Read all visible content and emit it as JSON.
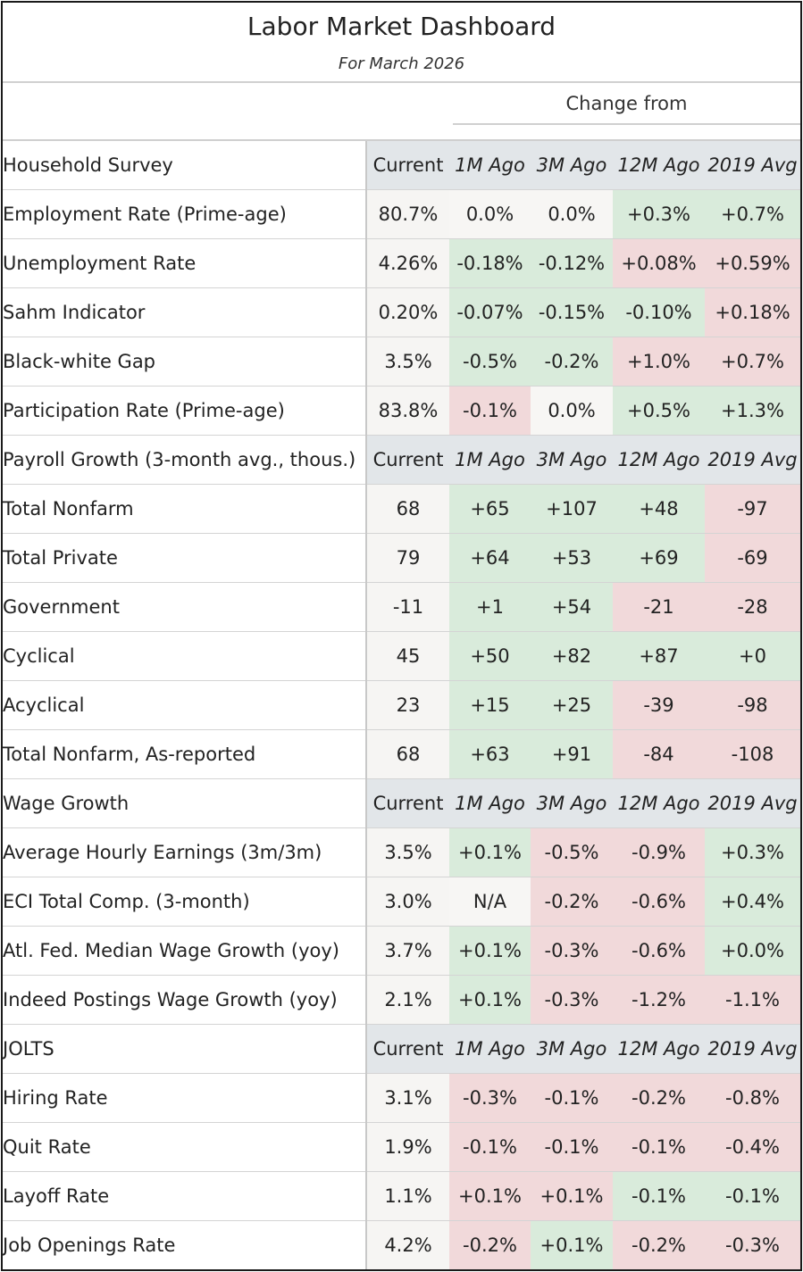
{
  "title": "Labor Market Dashboard",
  "subtitle": "For March 2026",
  "change_from_label": "Change from",
  "colors": {
    "positive": "#d9ebdb",
    "negative": "#f1d9da",
    "neutral": "#f7f6f4",
    "header": "#e2e6e9"
  },
  "rows": [
    {
      "type": "section",
      "label": "Household Survey",
      "current": "Current",
      "m1": "1M Ago",
      "m3": "3M Ago",
      "m12": "12M Ago",
      "y2019": "2019 Avg"
    },
    {
      "type": "row",
      "indent": 1,
      "label": "Employment Rate (Prime-age)",
      "current": "80.7%",
      "m1": "0.0%",
      "m3": "0.0%",
      "m12": "+0.3%",
      "y2019": "+0.7%",
      "signs": [
        "neu",
        "neu",
        "pos",
        "pos"
      ]
    },
    {
      "type": "row",
      "indent": 1,
      "label": "Unemployment Rate",
      "current": "4.26%",
      "m1": "-0.18%",
      "m3": "-0.12%",
      "m12": "+0.08%",
      "y2019": "+0.59%",
      "signs": [
        "pos",
        "pos",
        "neg",
        "neg"
      ]
    },
    {
      "type": "row",
      "indent": 2,
      "label": "Sahm Indicator",
      "current": "0.20%",
      "m1": "-0.07%",
      "m3": "-0.15%",
      "m12": "-0.10%",
      "y2019": "+0.18%",
      "signs": [
        "pos",
        "pos",
        "pos",
        "neg"
      ]
    },
    {
      "type": "row",
      "indent": 2,
      "label": "Black-white Gap",
      "current": "3.5%",
      "m1": "-0.5%",
      "m3": "-0.2%",
      "m12": "+1.0%",
      "y2019": "+0.7%",
      "signs": [
        "pos",
        "pos",
        "neg",
        "neg"
      ]
    },
    {
      "type": "row",
      "indent": 1,
      "label": "Participation Rate (Prime-age)",
      "current": "83.8%",
      "m1": "-0.1%",
      "m3": "0.0%",
      "m12": "+0.5%",
      "y2019": "+1.3%",
      "signs": [
        "neg",
        "neu",
        "pos",
        "pos"
      ]
    },
    {
      "type": "section",
      "label": "Payroll Growth (3-month avg., thous.)",
      "current": "Current",
      "m1": "1M Ago",
      "m3": "3M Ago",
      "m12": "12M Ago",
      "y2019": "2019 Avg"
    },
    {
      "type": "row",
      "indent": 1,
      "label": "Total Nonfarm",
      "current": "68",
      "m1": "+65",
      "m3": "+107",
      "m12": "+48",
      "y2019": "-97",
      "signs": [
        "pos",
        "pos",
        "pos",
        "neg"
      ]
    },
    {
      "type": "row",
      "indent": 2,
      "label": "Total Private",
      "current": "79",
      "m1": "+64",
      "m3": "+53",
      "m12": "+69",
      "y2019": "-69",
      "signs": [
        "pos",
        "pos",
        "pos",
        "neg"
      ]
    },
    {
      "type": "row",
      "indent": 2,
      "label": "Government",
      "current": "-11",
      "m1": "+1",
      "m3": "+54",
      "m12": "-21",
      "y2019": "-28",
      "signs": [
        "pos",
        "pos",
        "neg",
        "neg"
      ]
    },
    {
      "type": "row",
      "indent": 2,
      "label": "Cyclical",
      "current": "45",
      "m1": "+50",
      "m3": "+82",
      "m12": "+87",
      "y2019": "+0",
      "signs": [
        "pos",
        "pos",
        "pos",
        "pos"
      ]
    },
    {
      "type": "row",
      "indent": 2,
      "label": "Acyclical",
      "current": "23",
      "m1": "+15",
      "m3": "+25",
      "m12": "-39",
      "y2019": "-98",
      "signs": [
        "pos",
        "pos",
        "neg",
        "neg"
      ]
    },
    {
      "type": "row",
      "indent": 1,
      "label": "Total Nonfarm, As-reported",
      "current": "68",
      "m1": "+63",
      "m3": "+91",
      "m12": "-84",
      "y2019": "-108",
      "signs": [
        "pos",
        "pos",
        "neg",
        "neg"
      ]
    },
    {
      "type": "section",
      "label": "Wage Growth",
      "current": "Current",
      "m1": "1M Ago",
      "m3": "3M Ago",
      "m12": "12M Ago",
      "y2019": "2019 Avg"
    },
    {
      "type": "row",
      "indent": 1,
      "label": "Average Hourly Earnings (3m/3m)",
      "current": "3.5%",
      "m1": "+0.1%",
      "m3": "-0.5%",
      "m12": "-0.9%",
      "y2019": "+0.3%",
      "signs": [
        "pos",
        "neg",
        "neg",
        "pos"
      ]
    },
    {
      "type": "row",
      "indent": 1,
      "label": "ECI Total Comp. (3-month)",
      "current": "3.0%",
      "m1": "N/A",
      "m3": "-0.2%",
      "m12": "-0.6%",
      "y2019": "+0.4%",
      "signs": [
        "neu",
        "neg",
        "neg",
        "pos"
      ]
    },
    {
      "type": "row",
      "indent": 1,
      "label": "Atl. Fed. Median Wage Growth (yoy)",
      "current": "3.7%",
      "m1": "+0.1%",
      "m3": "-0.3%",
      "m12": "-0.6%",
      "y2019": "+0.0%",
      "signs": [
        "pos",
        "neg",
        "neg",
        "pos"
      ]
    },
    {
      "type": "row",
      "indent": 1,
      "label": "Indeed Postings Wage Growth (yoy)",
      "current": "2.1%",
      "m1": "+0.1%",
      "m3": "-0.3%",
      "m12": "-1.2%",
      "y2019": "-1.1%",
      "signs": [
        "pos",
        "neg",
        "neg",
        "neg"
      ]
    },
    {
      "type": "section",
      "label": "JOLTS",
      "current": "Current",
      "m1": "1M Ago",
      "m3": "3M Ago",
      "m12": "12M Ago",
      "y2019": "2019 Avg"
    },
    {
      "type": "row",
      "indent": 1,
      "label": "Hiring Rate",
      "current": "3.1%",
      "m1": "-0.3%",
      "m3": "-0.1%",
      "m12": "-0.2%",
      "y2019": "-0.8%",
      "signs": [
        "neg",
        "neg",
        "neg",
        "neg"
      ]
    },
    {
      "type": "row",
      "indent": 1,
      "label": "Quit Rate",
      "current": "1.9%",
      "m1": "-0.1%",
      "m3": "-0.1%",
      "m12": "-0.1%",
      "y2019": "-0.4%",
      "signs": [
        "neg",
        "neg",
        "neg",
        "neg"
      ]
    },
    {
      "type": "row",
      "indent": 1,
      "label": "Layoff Rate",
      "current": "1.1%",
      "m1": "+0.1%",
      "m3": "+0.1%",
      "m12": "-0.1%",
      "y2019": "-0.1%",
      "signs": [
        "neg",
        "neg",
        "pos",
        "pos"
      ]
    },
    {
      "type": "row",
      "indent": 1,
      "label": "Job Openings Rate",
      "current": "4.2%",
      "m1": "-0.2%",
      "m3": "+0.1%",
      "m12": "-0.2%",
      "y2019": "-0.3%",
      "signs": [
        "neg",
        "pos",
        "neg",
        "neg"
      ]
    }
  ]
}
